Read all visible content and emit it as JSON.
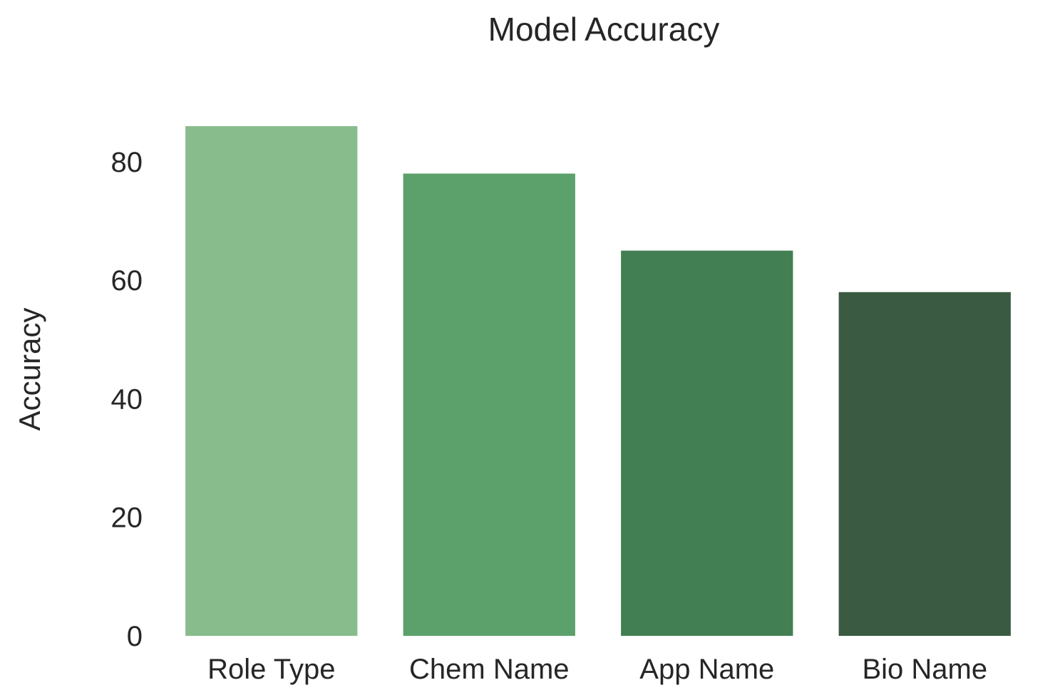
{
  "chart_data": {
    "type": "bar",
    "title": "Model Accuracy",
    "xlabel": "",
    "ylabel": "Accuracy",
    "categories": [
      "Role Type",
      "Chem Name",
      "App Name",
      "Bio Name"
    ],
    "values": [
      86,
      78,
      65,
      58
    ],
    "colors": [
      "#88bc8c",
      "#5ca06c",
      "#428054",
      "#3b5a42"
    ],
    "yticks": [
      0,
      20,
      40,
      60,
      80
    ],
    "ylim": [
      0,
      86
    ],
    "grid": false,
    "legend": "none"
  }
}
